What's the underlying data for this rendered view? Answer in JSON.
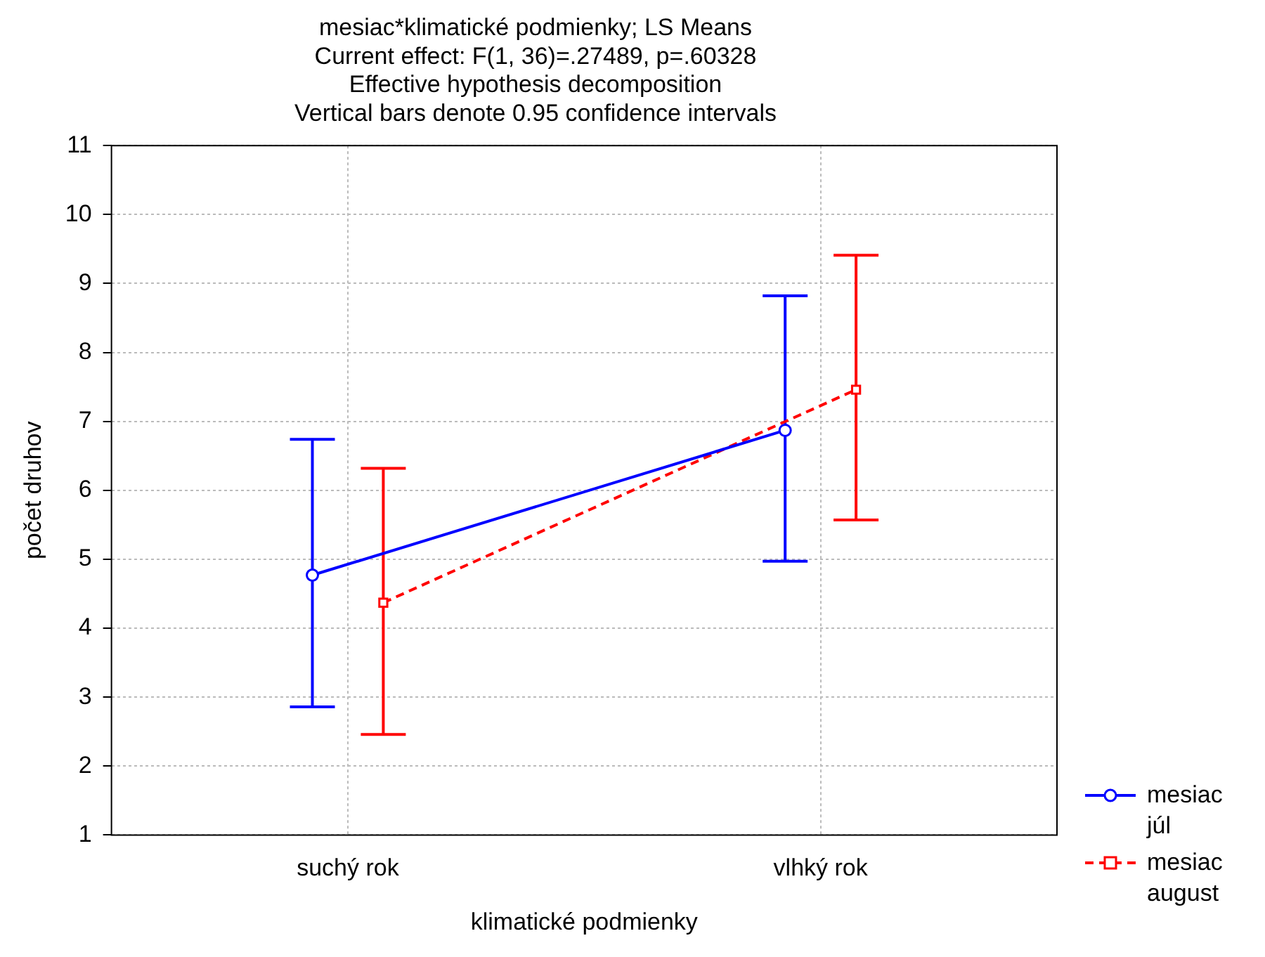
{
  "chart_data": {
    "type": "line",
    "title": "mesiac*klimatické podmienky; LS Means",
    "subtitle": "Current effect: F(1, 36)=.27489, p=.60328",
    "annotations": [
      "Effective hypothesis decomposition",
      "Vertical bars denote 0.95 confidence intervals"
    ],
    "xlabel": "klimatické podmienky",
    "ylabel": "počet druhov",
    "categories": [
      "suchý rok",
      "vlhký rok"
    ],
    "series": [
      {
        "name": "mesiac júl",
        "color": "#0000ff",
        "values": [
          4.77,
          6.87
        ],
        "errors": [
          [
            2.86,
            6.74
          ],
          [
            4.97,
            8.82
          ]
        ],
        "marker": "circle",
        "line_style": "solid"
      },
      {
        "name": "mesiac august",
        "color": "#ff0000",
        "values": [
          4.37,
          7.46
        ],
        "errors": [
          [
            2.46,
            6.32
          ],
          [
            5.57,
            9.41
          ]
        ],
        "marker": "square",
        "line_style": "dashed"
      }
    ],
    "ylim": [
      1,
      11
    ],
    "yticks": [
      1,
      2,
      3,
      4,
      5,
      6,
      7,
      8,
      9,
      10,
      11
    ],
    "grid": true,
    "legend": "bottom right"
  }
}
